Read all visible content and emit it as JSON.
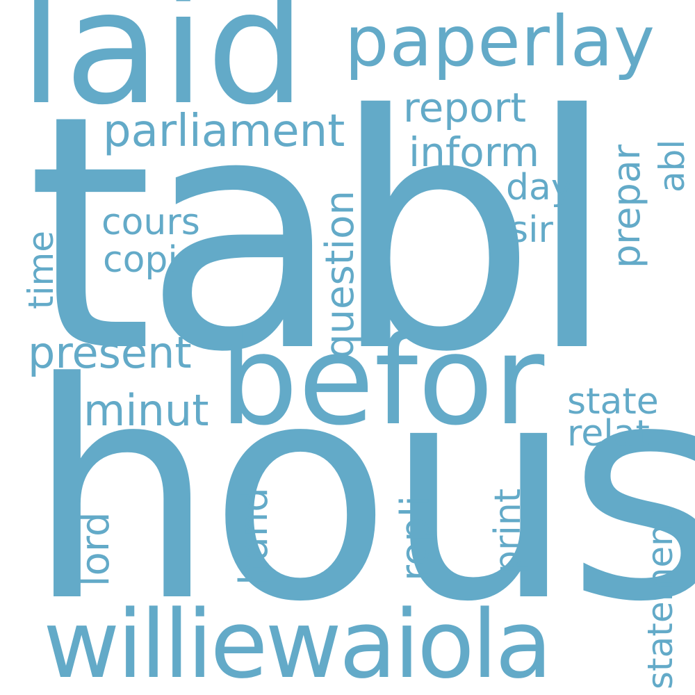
{
  "word_color": "#63aac8",
  "background_color": "#ffffff",
  "words": {
    "tabl": "tabl",
    "hous": "hous",
    "laid": "laid",
    "befor": "befor",
    "williewaiola": "williewaiola",
    "paperlay": "paperlay",
    "parliament": "parliament",
    "report": "report",
    "inform": "inform",
    "day": "day",
    "prepar": "prepar",
    "abl": "abl",
    "cours": "cours",
    "copi": "copi",
    "sir": "sir",
    "question": "question",
    "time": "time",
    "present": "present",
    "minut": "minut",
    "state": "state",
    "relat": "relat",
    "statement": "statement",
    "repli": "repli",
    "print": "print",
    "hand": "hand",
    "lord": "lord"
  }
}
